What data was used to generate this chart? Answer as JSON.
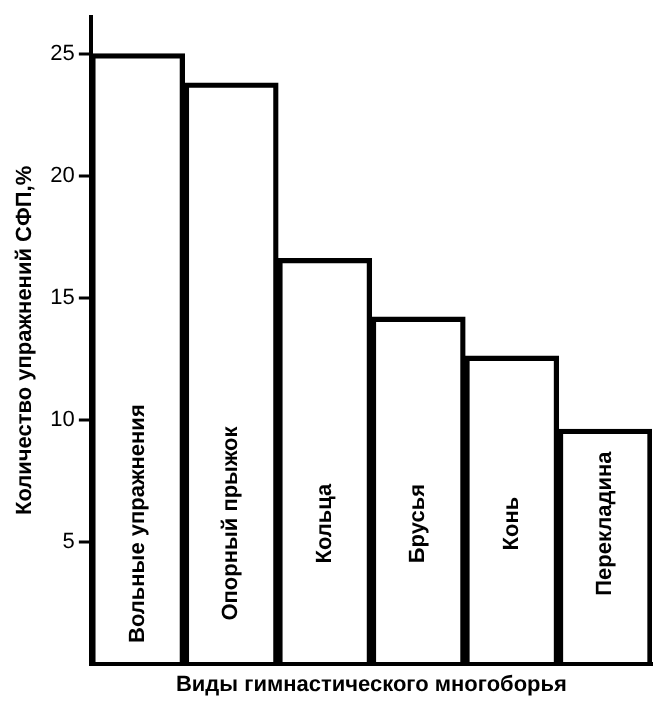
{
  "chart_data": {
    "type": "bar",
    "xlabel": "Виды гимнастического многоборья",
    "ylabel": "Количество упражнений СФП,%",
    "categories": [
      "Вольные упражнения",
      "Опорный прыжок",
      "Кольца",
      "Брусья",
      "Конь",
      "Перекладина"
    ],
    "values": [
      25,
      23.8,
      16.6,
      14.2,
      12.6,
      9.6
    ],
    "color": "#000000",
    "ylim": [
      0,
      26.5
    ],
    "yticks": [
      5,
      10,
      15,
      20,
      25
    ],
    "grid": false,
    "legend": false
  }
}
